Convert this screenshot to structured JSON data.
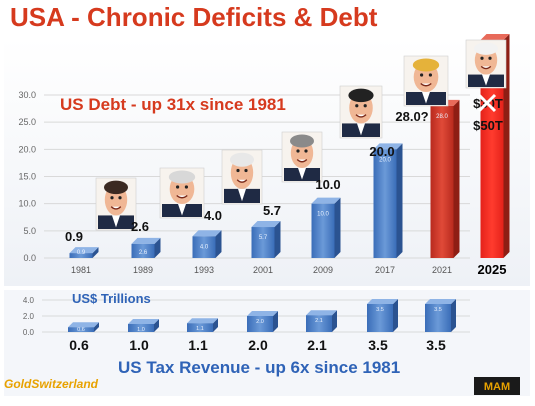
{
  "title": "USA - Chronic Deficits & Debt",
  "brand_left": "GoldSwitzerland",
  "brand_right": "MAM",
  "colors": {
    "title": "#d63a1e",
    "debt_bar": "#4a7ec6",
    "debt_bar_red": "#d23a2a",
    "annotation_red": "#d63a1e",
    "tax_bar": "#3f72bd",
    "tax_label": "#2f63b7",
    "grid": "#d9d9d9",
    "brand": "#e8a200"
  },
  "chart_data": [
    {
      "type": "bar",
      "title": "US Debt  -  up 31x since 1981",
      "categories": [
        "1981",
        "1989",
        "1993",
        "2001",
        "2009",
        "2017",
        "2021",
        "2025"
      ],
      "values": [
        0.9,
        2.6,
        4.0,
        5.7,
        10.0,
        20.0,
        28.0,
        50.0
      ],
      "value_labels": [
        "0.9",
        "2.6",
        "4.0",
        "5.7",
        "10.0",
        "20.0",
        "28.0?",
        "$50T"
      ],
      "bar_inner_labels": [
        "0.9",
        "2.6",
        "4.0",
        "5.7",
        "10.0",
        "20.0",
        "28.0",
        ""
      ],
      "crossed_label": "$30T",
      "yticks": [
        "0.0",
        "5.0",
        "10.0",
        "15.0",
        "20.0",
        "25.0",
        "30.0"
      ],
      "ylim": [
        0,
        30
      ],
      "bar_colors": [
        "blue",
        "blue",
        "blue",
        "blue",
        "blue",
        "blue",
        "red",
        "red"
      ],
      "grid": true
    },
    {
      "type": "bar",
      "title": "US$ Trillions",
      "subtitle": "US Tax Revenue  - up 6x since 1981",
      "categories": [
        "1981",
        "1989",
        "1993",
        "2001",
        "2009",
        "2017",
        "2021"
      ],
      "values": [
        0.6,
        1.0,
        1.1,
        2.0,
        2.1,
        3.5,
        3.5
      ],
      "value_labels": [
        "0.6",
        "1.0",
        "1.1",
        "2.0",
        "2.1",
        "3.5",
        "3.5"
      ],
      "yticks": [
        "0.0",
        "2.0",
        "4.0"
      ],
      "ylim": [
        0,
        4
      ],
      "grid": true
    }
  ]
}
